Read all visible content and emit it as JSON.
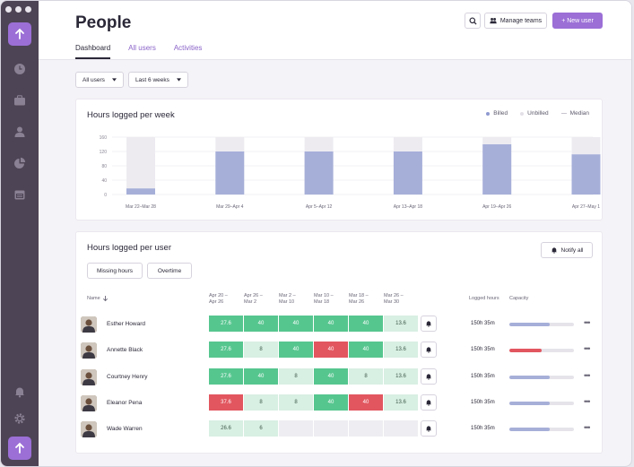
{
  "header": {
    "title": "People",
    "tabs": [
      {
        "label": "Dashboard",
        "active": true
      },
      {
        "label": "All users",
        "active": false
      },
      {
        "label": "Activities",
        "active": false
      }
    ],
    "manage_teams": "Manage teams",
    "new_user": "+ New user"
  },
  "filters": {
    "users": "All users",
    "period": "Last 6 weeks"
  },
  "weekly_chart": {
    "title": "Hours logged per week",
    "legend": [
      "Billed",
      "Unbilled",
      "Median"
    ],
    "colors": {
      "billed": "#a6afd8",
      "unbilled": "#edebf0",
      "median": "#c8c4cf"
    }
  },
  "chart_data": {
    "type": "bar",
    "categories": [
      "Mar 22–Mar 28",
      "Mar 29–Apr 4",
      "Apr 5–Apr 12",
      "Apr 13–Apr 18",
      "Apr 19–Apr 26",
      "Apr 27–May 1"
    ],
    "series": [
      {
        "name": "Billed",
        "values": [
          17,
          120,
          120,
          120,
          140,
          112
        ]
      },
      {
        "name": "Unbilled",
        "values": [
          143,
          40,
          40,
          40,
          20,
          48
        ]
      }
    ],
    "yticks": [
      0,
      40,
      80,
      120,
      160
    ],
    "ylim": [
      0,
      160
    ]
  },
  "user_table": {
    "title": "Hours logged per user",
    "notify_all": "Notify all",
    "filter_buttons": [
      "Missing hours",
      "Overtime"
    ],
    "col_name": "Name",
    "weeks": [
      [
        "Apr 20 –",
        "Apr 26"
      ],
      [
        "Apr 26 –",
        "Mar 2"
      ],
      [
        "Mar 2 –",
        "Mar 10"
      ],
      [
        "Mar 10 –",
        "Mar 18"
      ],
      [
        "Mar 18 –",
        "Mar 26"
      ],
      [
        "Mar 26 –",
        "Mar 30"
      ]
    ],
    "col_logged": "Logged hours",
    "col_capacity": "Capacity",
    "rows": [
      {
        "name": "Esther Howard",
        "cells": [
          {
            "v": "27.6",
            "s": "green"
          },
          {
            "v": "40",
            "s": "green"
          },
          {
            "v": "40",
            "s": "green"
          },
          {
            "v": "40",
            "s": "green"
          },
          {
            "v": "40",
            "s": "green"
          },
          {
            "v": "13.6",
            "s": "light"
          }
        ],
        "logged": "150h 35m",
        "capacity": 0.62
      },
      {
        "name": "Annette Black",
        "cells": [
          {
            "v": "27.6",
            "s": "green"
          },
          {
            "v": "8",
            "s": "light"
          },
          {
            "v": "40",
            "s": "green"
          },
          {
            "v": "40",
            "s": "red"
          },
          {
            "v": "40",
            "s": "green"
          },
          {
            "v": "13.6",
            "s": "light"
          }
        ],
        "logged": "150h 35m",
        "capacity": 0.5
      },
      {
        "name": "Courtney Henry",
        "cells": [
          {
            "v": "27.6",
            "s": "green"
          },
          {
            "v": "40",
            "s": "green"
          },
          {
            "v": "8",
            "s": "light"
          },
          {
            "v": "40",
            "s": "green"
          },
          {
            "v": "8",
            "s": "light"
          },
          {
            "v": "13.6",
            "s": "light"
          }
        ],
        "logged": "150h 35m",
        "capacity": 0.62
      },
      {
        "name": "Eleanor Pena",
        "cells": [
          {
            "v": "37.6",
            "s": "red"
          },
          {
            "v": "8",
            "s": "light"
          },
          {
            "v": "8",
            "s": "light"
          },
          {
            "v": "40",
            "s": "green"
          },
          {
            "v": "40",
            "s": "red"
          },
          {
            "v": "13.6",
            "s": "light"
          }
        ],
        "logged": "150h 35m",
        "capacity": 0.62
      },
      {
        "name": "Wade Warren",
        "cells": [
          {
            "v": "26.6",
            "s": "light"
          },
          {
            "v": "6",
            "s": "light"
          },
          {
            "v": "",
            "s": "empty"
          },
          {
            "v": "",
            "s": "empty"
          },
          {
            "v": "",
            "s": "empty"
          },
          {
            "v": "",
            "s": "empty"
          }
        ],
        "logged": "150h 35m",
        "capacity": 0.62
      }
    ]
  }
}
